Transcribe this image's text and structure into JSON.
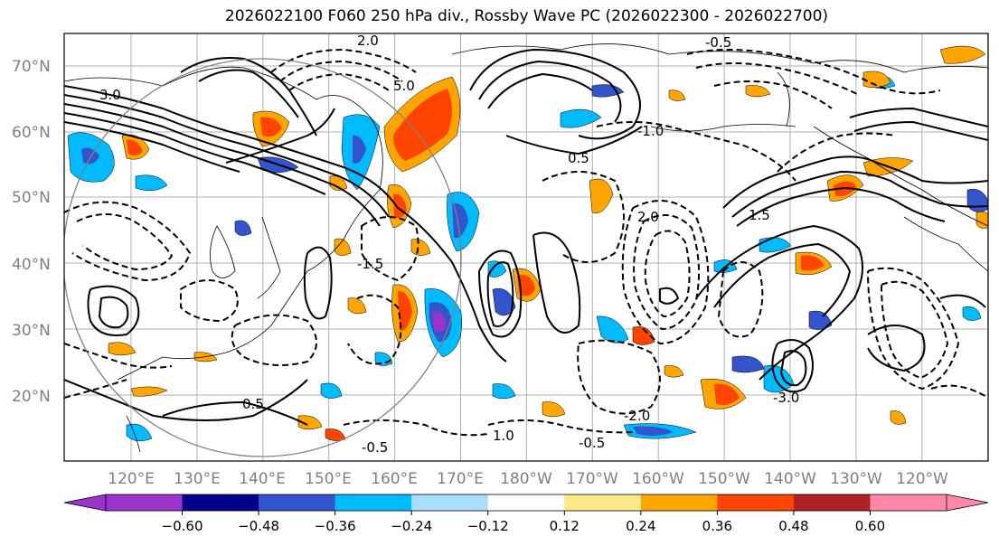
{
  "title": "2026022100 F060 250 hPa div., Rossby Wave PC (2026022300 - 2026022700)",
  "lat_labels": [
    "70°N",
    "60°N",
    "50°N",
    "40°N",
    "30°N",
    "20°N"
  ],
  "lon_labels": [
    "120°E",
    "130°E",
    "140°E",
    "150°E",
    "160°E",
    "170°E",
    "180°W",
    "170°W",
    "160°W",
    "150°W",
    "140°W",
    "130°W",
    "120°W"
  ],
  "colorbar": {
    "ticks": [
      "−0.60",
      "−0.48",
      "−0.36",
      "−0.24",
      "−0.12",
      "0.12",
      "0.24",
      "0.36",
      "0.48",
      "0.60"
    ],
    "colors": [
      "#9933cc",
      "#000088",
      "#3355cc",
      "#00bbff",
      "#aaddff",
      "#ffffff",
      "#ffe88a",
      "#ffa500",
      "#ff4400",
      "#b22222",
      "#ff88aa"
    ]
  },
  "contour_labels": [
    "2.0",
    "-0.5",
    "5.0",
    "3.0",
    "-1.0",
    "1.5",
    "-1.5",
    "0.5",
    "-2.0",
    "1.0",
    "-3.0",
    "2.0",
    "-0.5",
    "0.5",
    "-0.5"
  ]
}
